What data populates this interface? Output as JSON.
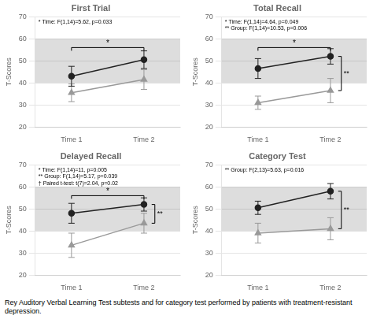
{
  "chart_data": [
    {
      "type": "line",
      "title": "First Trial",
      "categories": [
        "Time 1",
        "Time 2"
      ],
      "ylabel": "T-Scores",
      "ylim": [
        20,
        70
      ],
      "yticks": [
        20,
        30,
        40,
        50,
        60,
        70
      ],
      "grid": true,
      "series": [
        {
          "color": "#999999",
          "marker": "triangle",
          "values": [
            35.5,
            41.5
          ],
          "errors": [
            4.0,
            4.5
          ]
        },
        {
          "color": "#222222",
          "marker": "circle",
          "values": [
            43,
            50.5
          ],
          "errors": [
            4.5,
            4.0
          ]
        }
      ],
      "bands": [
        {
          "range": [
            40,
            60
          ],
          "color": "#dddddd"
        }
      ],
      "annotation": "* Time: F(1,14)=5.62, p=0.033",
      "bracket": {
        "text": "*",
        "y": 56,
        "from": "Time 1",
        "to": "Time 2"
      }
    },
    {
      "type": "line",
      "title": "Total Recall",
      "categories": [
        "Time 1",
        "Time 2"
      ],
      "ylabel": "T-Scores",
      "ylim": [
        20,
        70
      ],
      "yticks": [
        20,
        30,
        40,
        50,
        60,
        70
      ],
      "grid": true,
      "series": [
        {
          "color": "#999999",
          "marker": "triangle",
          "values": [
            31,
            36.5
          ],
          "errors": [
            3.0,
            5.5
          ]
        },
        {
          "color": "#222222",
          "marker": "circle",
          "values": [
            46.5,
            52
          ],
          "errors": [
            4.5,
            3.5
          ]
        }
      ],
      "bands": [
        {
          "range": [
            40,
            60
          ],
          "color": "#dddddd"
        }
      ],
      "annotation": "* Time: F(1,14)=4.64, p=0.049\n** Group: F(1,14)=10.53, p=0.006",
      "bracket": {
        "text": "*",
        "y": 56,
        "from": "Time 1",
        "to": "Time 2"
      },
      "group_bracket": {
        "text": "**",
        "y1": 52,
        "y2": 36.5
      }
    },
    {
      "type": "line",
      "title": "Delayed Recall",
      "categories": [
        "Time 1",
        "Time 2"
      ],
      "ylabel": "T-Scores",
      "ylim": [
        20,
        70
      ],
      "yticks": [
        20,
        30,
        40,
        50,
        60,
        70
      ],
      "grid": true,
      "series": [
        {
          "color": "#999999",
          "marker": "triangle",
          "values": [
            33.5,
            43.5
          ],
          "errors": [
            5.5,
            4.5
          ]
        },
        {
          "color": "#222222",
          "marker": "circle",
          "values": [
            48,
            52
          ],
          "errors": [
            4.5,
            3.0
          ]
        }
      ],
      "bands": [
        {
          "range": [
            40,
            60
          ],
          "color": "#dddddd"
        }
      ],
      "annotation": "* Time: F(1,14)=11, p=0.005\n** Group: F(1,14)=5.17, p=0.039\n† Paired t-test: t(7)=2.04, p=0.02",
      "bracket": {
        "text": "*",
        "y": 56,
        "from": "Time 1",
        "to": "Time 2"
      },
      "group_bracket": {
        "text": "**",
        "y1": 52,
        "y2": 43.5
      }
    },
    {
      "type": "line",
      "title": "Category Test",
      "categories": [
        "Time 1",
        "Time 2"
      ],
      "ylabel": "T-Scores",
      "ylim": [
        20,
        70
      ],
      "yticks": [
        20,
        30,
        40,
        50,
        60,
        70
      ],
      "grid": true,
      "series": [
        {
          "color": "#999999",
          "marker": "triangle",
          "values": [
            39,
            41
          ],
          "errors": [
            4.5,
            5.0
          ]
        },
        {
          "color": "#222222",
          "marker": "circle",
          "values": [
            50.5,
            58
          ],
          "errors": [
            3.0,
            3.5
          ]
        }
      ],
      "bands": [
        {
          "range": [
            40,
            60
          ],
          "color": "#dddddd"
        }
      ],
      "annotation": "** Group: F(2,13)=5.63, p=0.016",
      "group_bracket": {
        "text": "**",
        "y1": 58,
        "y2": 41
      }
    }
  ],
  "caption": "Rey Auditory Verbal Learning Test subtests and for category test performed by patients with treatment-resistant depression."
}
